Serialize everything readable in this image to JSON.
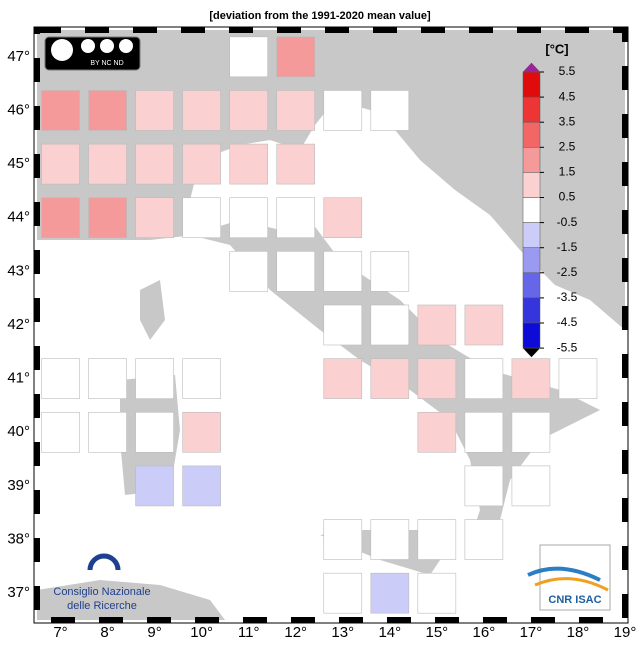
{
  "title": "[deviation from the 1991-2020 mean value]",
  "lon_ticks": [
    {
      "value": 7,
      "label": "7°"
    },
    {
      "value": 8,
      "label": "8°"
    },
    {
      "value": 9,
      "label": "9°"
    },
    {
      "value": 10,
      "label": "10°"
    },
    {
      "value": 11,
      "label": "11°"
    },
    {
      "value": 12,
      "label": "12°"
    },
    {
      "value": 13,
      "label": "13°"
    },
    {
      "value": 14,
      "label": "14°"
    },
    {
      "value": 15,
      "label": "15°"
    },
    {
      "value": 16,
      "label": "16°"
    },
    {
      "value": 17,
      "label": "17°"
    },
    {
      "value": 18,
      "label": "18°"
    },
    {
      "value": 19,
      "label": "19°"
    }
  ],
  "lat_ticks": [
    {
      "value": 47,
      "label": "47°"
    },
    {
      "value": 46,
      "label": "46°"
    },
    {
      "value": 45,
      "label": "45°"
    },
    {
      "value": 44,
      "label": "44°"
    },
    {
      "value": 43,
      "label": "43°"
    },
    {
      "value": 42,
      "label": "42°"
    },
    {
      "value": 41,
      "label": "41°"
    },
    {
      "value": 40,
      "label": "40°"
    },
    {
      "value": 39,
      "label": "39°"
    },
    {
      "value": 38,
      "label": "38°"
    },
    {
      "value": 37,
      "label": "37°"
    }
  ],
  "xlim": [
    6.5,
    19
  ],
  "ylim": [
    36.5,
    47.5
  ],
  "colorbar": {
    "label": "[°C]",
    "ticks": [
      5.5,
      4.5,
      3.5,
      2.5,
      1.5,
      0.5,
      -0.5,
      -1.5,
      -2.5,
      -3.5,
      -4.5,
      -5.5
    ],
    "colors": [
      "#e00c0c",
      "#ee3535",
      "#f26666",
      "#f49a9a",
      "#fbd0d0",
      "#ffffff",
      "#ccccf8",
      "#9a9af0",
      "#6666e8",
      "#3535de",
      "#0c0cd6"
    ]
  },
  "cells": [
    {
      "lon": 11,
      "lat": 47,
      "value": 0
    },
    {
      "lon": 12,
      "lat": 47,
      "value": 1.8
    },
    {
      "lon": 7,
      "lat": 46,
      "value": 2
    },
    {
      "lon": 8,
      "lat": 46,
      "value": 2
    },
    {
      "lon": 9,
      "lat": 46,
      "value": 1.2
    },
    {
      "lon": 10,
      "lat": 46,
      "value": 1.2
    },
    {
      "lon": 11,
      "lat": 46,
      "value": 1.2
    },
    {
      "lon": 12,
      "lat": 46,
      "value": 1.2
    },
    {
      "lon": 13,
      "lat": 46,
      "value": 0
    },
    {
      "lon": 14,
      "lat": 46,
      "value": 0
    },
    {
      "lon": 7,
      "lat": 45,
      "value": 1.2
    },
    {
      "lon": 8,
      "lat": 45,
      "value": 1.2
    },
    {
      "lon": 9,
      "lat": 45,
      "value": 1.2
    },
    {
      "lon": 10,
      "lat": 45,
      "value": 1.2
    },
    {
      "lon": 11,
      "lat": 45,
      "value": 1.2
    },
    {
      "lon": 12,
      "lat": 45,
      "value": 1.2
    },
    {
      "lon": 7,
      "lat": 44,
      "value": 2.2
    },
    {
      "lon": 8,
      "lat": 44,
      "value": 2.2
    },
    {
      "lon": 9,
      "lat": 44,
      "value": 1.2
    },
    {
      "lon": 10,
      "lat": 44,
      "value": 0
    },
    {
      "lon": 11,
      "lat": 44,
      "value": 0
    },
    {
      "lon": 12,
      "lat": 44,
      "value": 0
    },
    {
      "lon": 13,
      "lat": 44,
      "value": 1.2
    },
    {
      "lon": 11,
      "lat": 43,
      "value": 0
    },
    {
      "lon": 12,
      "lat": 43,
      "value": 0
    },
    {
      "lon": 13,
      "lat": 43,
      "value": 0
    },
    {
      "lon": 14,
      "lat": 43,
      "value": 0
    },
    {
      "lon": 13,
      "lat": 42,
      "value": 0
    },
    {
      "lon": 14,
      "lat": 42,
      "value": 0
    },
    {
      "lon": 15,
      "lat": 42,
      "value": 1.2
    },
    {
      "lon": 16,
      "lat": 42,
      "value": 1.2
    },
    {
      "lon": 7,
      "lat": 41,
      "value": 0
    },
    {
      "lon": 8,
      "lat": 41,
      "value": 0
    },
    {
      "lon": 9,
      "lat": 41,
      "value": 0
    },
    {
      "lon": 10,
      "lat": 41,
      "value": 0
    },
    {
      "lon": 13,
      "lat": 41,
      "value": 1.2
    },
    {
      "lon": 14,
      "lat": 41,
      "value": 1.2
    },
    {
      "lon": 15,
      "lat": 41,
      "value": 1.2
    },
    {
      "lon": 16,
      "lat": 41,
      "value": 0
    },
    {
      "lon": 17,
      "lat": 41,
      "value": 1.2
    },
    {
      "lon": 18,
      "lat": 41,
      "value": 0
    },
    {
      "lon": 7,
      "lat": 40,
      "value": 0
    },
    {
      "lon": 8,
      "lat": 40,
      "value": 0
    },
    {
      "lon": 9,
      "lat": 40,
      "value": 0
    },
    {
      "lon": 10,
      "lat": 40,
      "value": 1.2
    },
    {
      "lon": 15,
      "lat": 40,
      "value": 1.2
    },
    {
      "lon": 16,
      "lat": 40,
      "value": 0
    },
    {
      "lon": 17,
      "lat": 40,
      "value": 0
    },
    {
      "lon": 9,
      "lat": 39,
      "value": -1
    },
    {
      "lon": 10,
      "lat": 39,
      "value": -0.8
    },
    {
      "lon": 16,
      "lat": 39,
      "value": 0
    },
    {
      "lon": 17,
      "lat": 39,
      "value": 0
    },
    {
      "lon": 13,
      "lat": 38,
      "value": 0
    },
    {
      "lon": 14,
      "lat": 38,
      "value": 0
    },
    {
      "lon": 15,
      "lat": 38,
      "value": 0
    },
    {
      "lon": 16,
      "lat": 38,
      "value": 0
    },
    {
      "lon": 13,
      "lat": 37,
      "value": 0
    },
    {
      "lon": 14,
      "lat": 37,
      "value": -1
    },
    {
      "lon": 15,
      "lat": 37,
      "value": 0
    }
  ],
  "logos": {
    "cc": "BY NC ND",
    "cnr_line1": "Consiglio Nazionale",
    "cnr_line2": "delle Ricerche",
    "isac": "CNR ISAC"
  }
}
